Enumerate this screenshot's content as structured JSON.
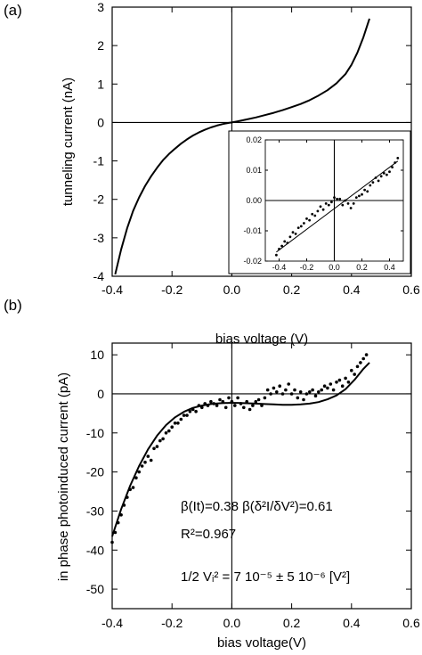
{
  "figure": {
    "panel_a_label": "(a)",
    "panel_b_label": "(b)"
  },
  "chart_data": [
    {
      "panel": "(a)",
      "type": "line",
      "xlabel": "bias voltage (V)",
      "ylabel": "tunneling current (nA)",
      "xlim": [
        -0.4,
        0.6
      ],
      "ylim": [
        -4,
        3
      ],
      "xticks": [
        "-0.4",
        "-0.2",
        "0.0",
        "0.2",
        "0.4",
        "0.6"
      ],
      "yticks": [
        "3",
        "2",
        "1",
        "0",
        "-1",
        "-2",
        "-3",
        "-4"
      ],
      "series": [
        {
          "x": [
            -0.39,
            -0.37,
            -0.35,
            -0.33,
            -0.31,
            -0.29,
            -0.27,
            -0.25,
            -0.23,
            -0.21,
            -0.19,
            -0.17,
            -0.15,
            -0.13,
            -0.11,
            -0.09,
            -0.07,
            -0.05,
            -0.03,
            -0.01,
            0.0,
            0.02,
            0.05,
            0.08,
            0.11,
            0.14,
            0.17,
            0.2,
            0.23,
            0.26,
            0.29,
            0.32,
            0.35,
            0.38,
            0.4,
            0.42,
            0.44,
            0.46
          ],
          "y": [
            -3.95,
            -3.3,
            -2.75,
            -2.3,
            -1.95,
            -1.65,
            -1.4,
            -1.18,
            -0.98,
            -0.82,
            -0.68,
            -0.55,
            -0.44,
            -0.34,
            -0.26,
            -0.19,
            -0.13,
            -0.08,
            -0.04,
            -0.01,
            0.0,
            0.03,
            0.08,
            0.13,
            0.19,
            0.25,
            0.32,
            0.4,
            0.48,
            0.58,
            0.7,
            0.84,
            1.02,
            1.26,
            1.5,
            1.82,
            2.22,
            2.7
          ]
        }
      ],
      "inset": {
        "type": "scatter",
        "xlim": [
          -0.5,
          0.5
        ],
        "ylim": [
          -0.02,
          0.02
        ],
        "xticks": [
          "-0.4",
          "-0.2",
          "0.0",
          "0.2",
          "0.4"
        ],
        "yticks": [
          "0.02",
          "0.01",
          "0.00",
          "-0.01",
          "-0.02"
        ],
        "fit_line": {
          "x": [
            -0.42,
            0.46
          ],
          "y": [
            -0.017,
            0.013
          ]
        },
        "points": {
          "x": [
            -0.42,
            -0.4,
            -0.38,
            -0.36,
            -0.34,
            -0.32,
            -0.3,
            -0.28,
            -0.26,
            -0.24,
            -0.22,
            -0.2,
            -0.18,
            -0.16,
            -0.14,
            -0.12,
            -0.1,
            -0.08,
            -0.06,
            -0.04,
            -0.02,
            0.0,
            0.02,
            0.04,
            0.06,
            0.08,
            0.1,
            0.12,
            0.14,
            0.16,
            0.18,
            0.2,
            0.22,
            0.24,
            0.26,
            0.28,
            0.3,
            0.32,
            0.34,
            0.36,
            0.38,
            0.4,
            0.42,
            0.44,
            0.46
          ],
          "y": [
            -0.018,
            -0.016,
            -0.015,
            -0.0135,
            -0.014,
            -0.012,
            -0.0105,
            -0.011,
            -0.009,
            -0.0085,
            -0.0075,
            -0.006,
            -0.0065,
            -0.0045,
            -0.005,
            -0.0035,
            -0.002,
            -0.003,
            -0.001,
            -0.0015,
            -0.0005,
            0.001,
            0.0005,
            0.0005,
            -0.0015,
            0.0,
            -0.001,
            -0.0025,
            -0.001,
            0.001,
            0.0015,
            0.002,
            0.0035,
            0.003,
            0.005,
            0.006,
            0.0075,
            0.0065,
            0.008,
            0.009,
            0.0085,
            0.0095,
            0.011,
            0.0125,
            0.014
          ]
        }
      }
    },
    {
      "panel": "(b)",
      "type": "scatter",
      "xlabel": "bias voltage(V)",
      "ylabel": "in phase photoinduced current (pA)",
      "xlim": [
        -0.4,
        0.6
      ],
      "ylim": [
        -55,
        13
      ],
      "xticks": [
        "-0.4",
        "-0.2",
        "0.0",
        "0.2",
        "0.4",
        "0.6"
      ],
      "yticks": [
        "10",
        "0",
        "-10",
        "-20",
        "-30",
        "-40",
        "-50"
      ],
      "annotations": {
        "line1": "β(It)=0.38   β(δ²I/δV²)=0.61",
        "line2": "R²=0.967",
        "line3": "1/2 Vᵢ² = 7 10⁻⁵ ± 5 10⁻⁶  [V²]"
      },
      "fit_curve": {
        "x": [
          -0.4,
          -0.37,
          -0.34,
          -0.31,
          -0.28,
          -0.25,
          -0.22,
          -0.19,
          -0.16,
          -0.13,
          -0.1,
          -0.07,
          -0.04,
          -0.01,
          0.02,
          0.05,
          0.08,
          0.11,
          0.14,
          0.17,
          0.2,
          0.23,
          0.26,
          0.29,
          0.32,
          0.35,
          0.38,
          0.41,
          0.44,
          0.46
        ],
        "y": [
          -36.5,
          -29.5,
          -23.5,
          -18.5,
          -14.2,
          -10.7,
          -8.0,
          -6.0,
          -4.6,
          -3.6,
          -3.0,
          -2.6,
          -2.4,
          -2.3,
          -2.3,
          -2.4,
          -2.5,
          -2.6,
          -2.7,
          -2.8,
          -2.8,
          -2.7,
          -2.5,
          -2.1,
          -1.4,
          -0.4,
          1.2,
          3.6,
          6.4,
          8.0
        ]
      },
      "points": {
        "x": [
          -0.4,
          -0.39,
          -0.38,
          -0.37,
          -0.36,
          -0.35,
          -0.34,
          -0.33,
          -0.32,
          -0.31,
          -0.3,
          -0.29,
          -0.28,
          -0.27,
          -0.26,
          -0.25,
          -0.24,
          -0.23,
          -0.22,
          -0.21,
          -0.2,
          -0.19,
          -0.18,
          -0.17,
          -0.16,
          -0.15,
          -0.14,
          -0.13,
          -0.12,
          -0.11,
          -0.1,
          -0.09,
          -0.08,
          -0.07,
          -0.06,
          -0.05,
          -0.04,
          -0.03,
          -0.02,
          -0.01,
          0.0,
          0.01,
          0.02,
          0.03,
          0.04,
          0.05,
          0.06,
          0.07,
          0.08,
          0.09,
          0.1,
          0.11,
          0.12,
          0.13,
          0.14,
          0.15,
          0.16,
          0.17,
          0.18,
          0.19,
          0.2,
          0.21,
          0.22,
          0.23,
          0.24,
          0.25,
          0.26,
          0.27,
          0.28,
          0.29,
          0.3,
          0.31,
          0.32,
          0.33,
          0.34,
          0.35,
          0.36,
          0.37,
          0.38,
          0.39,
          0.4,
          0.41,
          0.42,
          0.43,
          0.44,
          0.45
        ],
        "y": [
          -38,
          -35.5,
          -33,
          -31,
          -28.5,
          -26.5,
          -24.5,
          -24,
          -21.5,
          -20,
          -18.5,
          -17.5,
          -16,
          -17,
          -14,
          -13.5,
          -12,
          -11.5,
          -10,
          -9.5,
          -8.5,
          -7.5,
          -7.5,
          -6.5,
          -5.5,
          -5.5,
          -4.5,
          -4,
          -4.5,
          -3,
          -3.5,
          -2.5,
          -3,
          -2,
          -2.5,
          -3,
          -1.5,
          -2,
          -3.5,
          -1,
          -2,
          -3,
          -1,
          -2.5,
          -3.5,
          -2,
          -4,
          -3,
          -2,
          -1.5,
          -3,
          -1,
          1,
          0,
          1.5,
          0.5,
          2,
          0,
          1,
          2.5,
          0,
          1,
          -1,
          0.5,
          -1.5,
          0,
          0.5,
          1,
          -0.5,
          0.5,
          1,
          2,
          1.5,
          2.5,
          1,
          3,
          3.5,
          2,
          4,
          3,
          6,
          5,
          7,
          8,
          9,
          10
        ]
      }
    }
  ]
}
